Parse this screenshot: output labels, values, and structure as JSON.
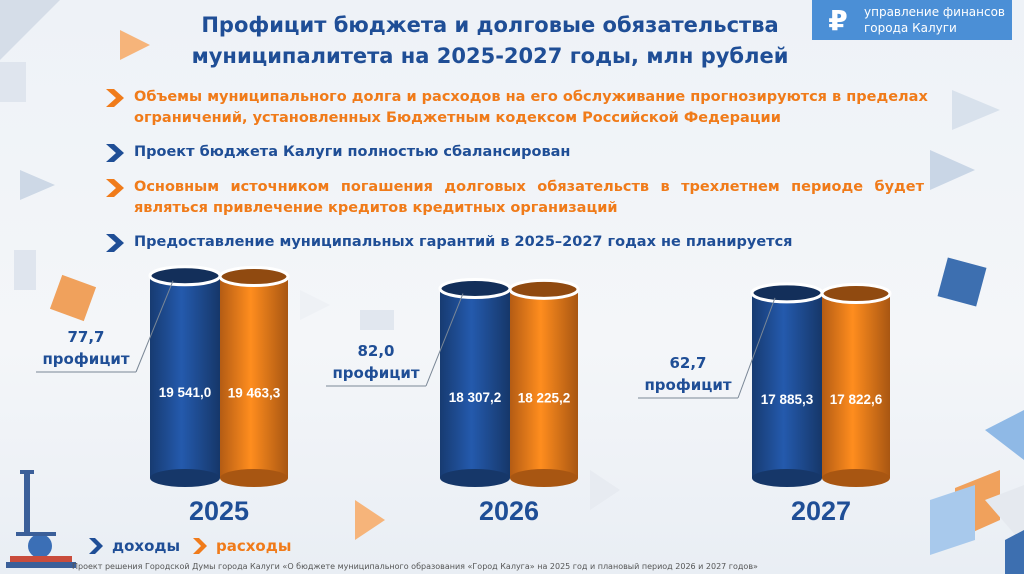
{
  "header": {
    "title_line1": "Профицит бюджета и долговые обязательства",
    "title_line2": "муниципалитета на 2025-2027 годы, млн рублей",
    "logo_symbol": "₽",
    "logo_line1": "управление финансов",
    "logo_line2": "города Калуги"
  },
  "bullets": [
    {
      "text": "Объемы муниципального долга и расходов на его обслуживание прогнозируются в пределах ограничений, установленных Бюджетным кодексом Российской Федерации",
      "color": "#f07b1a"
    },
    {
      "text": "Проект бюджета Калуги полностью сбалансирован",
      "color": "#1f4e96"
    },
    {
      "text": "Основным источником погашения долговых обязательств в трехлетнем периоде будет являться привлечение кредитов кредитных организаций",
      "color": "#f07b1a"
    },
    {
      "text": "Предоставление муниципальных гарантий в 2025–2027 годах не планируется",
      "color": "#1f4e96"
    }
  ],
  "chart_data": {
    "type": "bar",
    "categories": [
      "2025",
      "2026",
      "2027"
    ],
    "series": [
      {
        "name": "доходы",
        "color": "#1f4e96",
        "values": [
          19541.0,
          18307.2,
          17885.3
        ],
        "labels": [
          "19 541,0",
          "18 307,2",
          "17 885,3"
        ]
      },
      {
        "name": "расходы",
        "color": "#f07b1a",
        "values": [
          19463.3,
          18225.2,
          17822.6
        ],
        "labels": [
          "19 463,3",
          "18 225,2",
          "17 822,6"
        ]
      }
    ],
    "annotations": [
      {
        "value": "77,7",
        "label": "профицит"
      },
      {
        "value": "82,0",
        "label": "профицит"
      },
      {
        "value": "62,7",
        "label": "профицит"
      }
    ]
  },
  "legend": {
    "income": "доходы",
    "expense": "расходы"
  },
  "footer": "Проект решения Городской Думы города Калуги «О бюджете муниципального образования «Город Калуга» на 2025 год и плановый период 2026 и 2027 годов»"
}
